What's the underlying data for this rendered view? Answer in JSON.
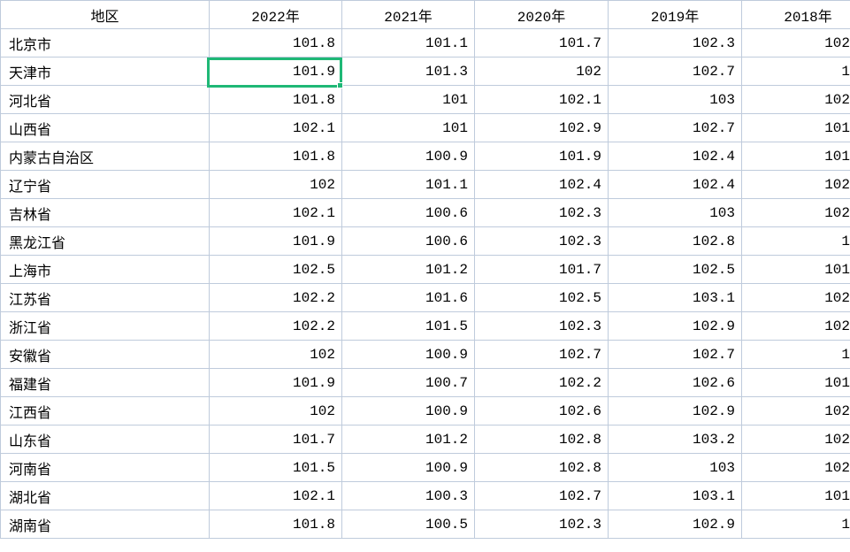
{
  "colors": {
    "grid_line": "#bfcbdc",
    "text": "#000000",
    "background": "#ffffff",
    "selection_border": "#1fb876"
  },
  "table": {
    "columns": [
      {
        "key": "region",
        "label": "地区"
      },
      {
        "key": "2022",
        "label": "2022年"
      },
      {
        "key": "2021",
        "label": "2021年"
      },
      {
        "key": "2020",
        "label": "2020年"
      },
      {
        "key": "2019",
        "label": "2019年"
      },
      {
        "key": "2018",
        "label": "2018年"
      }
    ],
    "rows": [
      [
        "北京市",
        "101.8",
        "101.1",
        "101.7",
        "102.3",
        "102"
      ],
      [
        "天津市",
        "101.9",
        "101.3",
        "102",
        "102.7",
        "1"
      ],
      [
        "河北省",
        "101.8",
        "101",
        "102.1",
        "103",
        "102"
      ],
      [
        "山西省",
        "102.1",
        "101",
        "102.9",
        "102.7",
        "101"
      ],
      [
        "内蒙古自治区",
        "101.8",
        "100.9",
        "101.9",
        "102.4",
        "101"
      ],
      [
        "辽宁省",
        "102",
        "101.1",
        "102.4",
        "102.4",
        "102"
      ],
      [
        "吉林省",
        "102.1",
        "100.6",
        "102.3",
        "103",
        "102"
      ],
      [
        "黑龙江省",
        "101.9",
        "100.6",
        "102.3",
        "102.8",
        "1"
      ],
      [
        "上海市",
        "102.5",
        "101.2",
        "101.7",
        "102.5",
        "101"
      ],
      [
        "江苏省",
        "102.2",
        "101.6",
        "102.5",
        "103.1",
        "102"
      ],
      [
        "浙江省",
        "102.2",
        "101.5",
        "102.3",
        "102.9",
        "102"
      ],
      [
        "安徽省",
        "102",
        "100.9",
        "102.7",
        "102.7",
        "1"
      ],
      [
        "福建省",
        "101.9",
        "100.7",
        "102.2",
        "102.6",
        "101"
      ],
      [
        "江西省",
        "102",
        "100.9",
        "102.6",
        "102.9",
        "102"
      ],
      [
        "山东省",
        "101.7",
        "101.2",
        "102.8",
        "103.2",
        "102"
      ],
      [
        "河南省",
        "101.5",
        "100.9",
        "102.8",
        "103",
        "102"
      ],
      [
        "湖北省",
        "102.1",
        "100.3",
        "102.7",
        "103.1",
        "101"
      ],
      [
        "湖南省",
        "101.8",
        "100.5",
        "102.3",
        "102.9",
        "1"
      ]
    ],
    "last_column_values_clipped": true
  },
  "selection": {
    "region": "天津市",
    "column_label": "2022年",
    "value": "101.9",
    "row_index": 1,
    "col_index": 1
  }
}
